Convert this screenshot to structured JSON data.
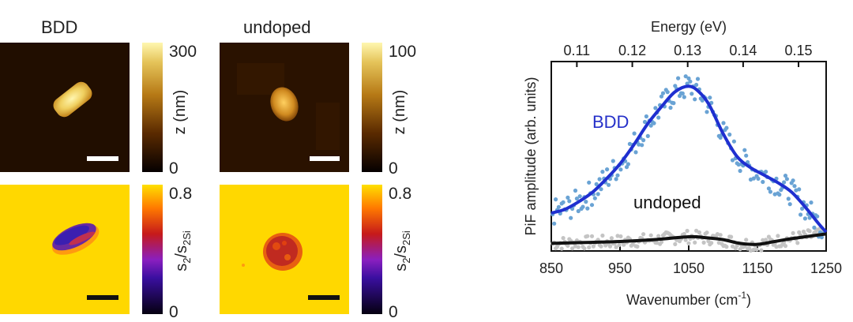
{
  "figure": {
    "bdd_title": "BDD",
    "undoped_title": "undoped",
    "colorbar_topo_bdd": {
      "max": "300",
      "min": "0",
      "label": "z (nm)"
    },
    "colorbar_topo_undoped": {
      "max": "100",
      "min": "0",
      "label": "z (nm)"
    },
    "colorbar_nf_bdd": {
      "max": "0.8",
      "min": "0",
      "label_main": "s",
      "label_sub1": "2",
      "label_mid": "/s",
      "label_sub2": "2Si"
    },
    "colorbar_nf_undoped": {
      "max": "0.8",
      "min": "0",
      "label_main": "s",
      "label_sub1": "2",
      "label_mid": "/s",
      "label_sub2": "2Si"
    }
  },
  "colors": {
    "bdd_fit": "#1f2fd0",
    "bdd_points": "#6aa3d4",
    "undoped_fit": "#111111",
    "undoped_points": "#c4c4c4",
    "bdd_label": "#2530c9",
    "nf_background": "#ffd800"
  },
  "chart_data": {
    "type": "scatter",
    "xlabel_main": "Wavenumber (cm",
    "xlabel_sup": "-1",
    "xlabel_end": ")",
    "ylabel": "PiF amplitude (arb. units)",
    "top_axis_label": "Energy (eV)",
    "xlim": [
      850,
      1250
    ],
    "ylim": [
      0,
      1
    ],
    "x_ticks": [
      "850",
      "950",
      "1050",
      "1150",
      "1250"
    ],
    "top_ticks": [
      "0.11",
      "0.12",
      "0.13",
      "0.14",
      "0.15"
    ],
    "top_tick_positions_cm": [
      887.2,
      967.9,
      1048.5,
      1129.2,
      1209.8
    ],
    "series": [
      {
        "name": "BDD",
        "fit": {
          "x": [
            850,
            870,
            890,
            910,
            930,
            950,
            970,
            990,
            1010,
            1030,
            1050,
            1065,
            1080,
            1100,
            1120,
            1140,
            1160,
            1180,
            1200,
            1220,
            1240,
            1250
          ],
          "y": [
            0.2,
            0.22,
            0.26,
            0.31,
            0.38,
            0.46,
            0.56,
            0.67,
            0.76,
            0.84,
            0.87,
            0.84,
            0.77,
            0.62,
            0.5,
            0.44,
            0.4,
            0.36,
            0.31,
            0.23,
            0.14,
            0.1
          ]
        }
      },
      {
        "name": "undoped",
        "fit": {
          "x": [
            850,
            900,
            950,
            1000,
            1050,
            1075,
            1100,
            1125,
            1150,
            1175,
            1200,
            1250
          ],
          "y": [
            0.04,
            0.045,
            0.05,
            0.06,
            0.075,
            0.07,
            0.06,
            0.04,
            0.035,
            0.05,
            0.065,
            0.09
          ]
        }
      }
    ]
  }
}
